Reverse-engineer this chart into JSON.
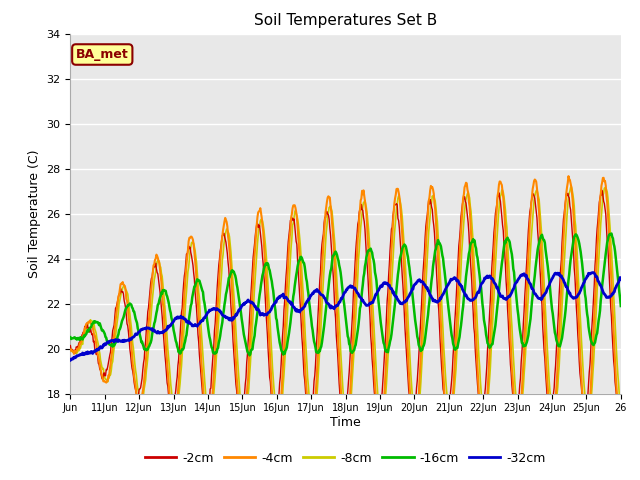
{
  "title": "Soil Temperatures Set B",
  "xlabel": "Time",
  "ylabel": "Soil Temperature (C)",
  "ylim": [
    18,
    34
  ],
  "xlim_days": [
    0,
    16
  ],
  "x_tick_labels": [
    "Jun",
    "11Jun",
    "12Jun",
    "13Jun",
    "14Jun",
    "15Jun",
    "16Jun",
    "17Jun",
    "18Jun",
    "19Jun",
    "20Jun",
    "21Jun",
    "22Jun",
    "23Jun",
    "24Jun",
    "25Jun",
    "26"
  ],
  "annotation_text": "BA_met",
  "annotation_color": "#8B0000",
  "annotation_bg": "#FFFF99",
  "bg_color": "#E8E8E8",
  "line_colors": {
    "-2cm": "#CC0000",
    "-4cm": "#FF8800",
    "-8cm": "#CCCC00",
    "-16cm": "#00BB00",
    "-32cm": "#0000CC"
  },
  "line_widths": {
    "-2cm": 1.0,
    "-4cm": 1.5,
    "-8cm": 1.2,
    "-16cm": 1.8,
    "-32cm": 2.0
  }
}
